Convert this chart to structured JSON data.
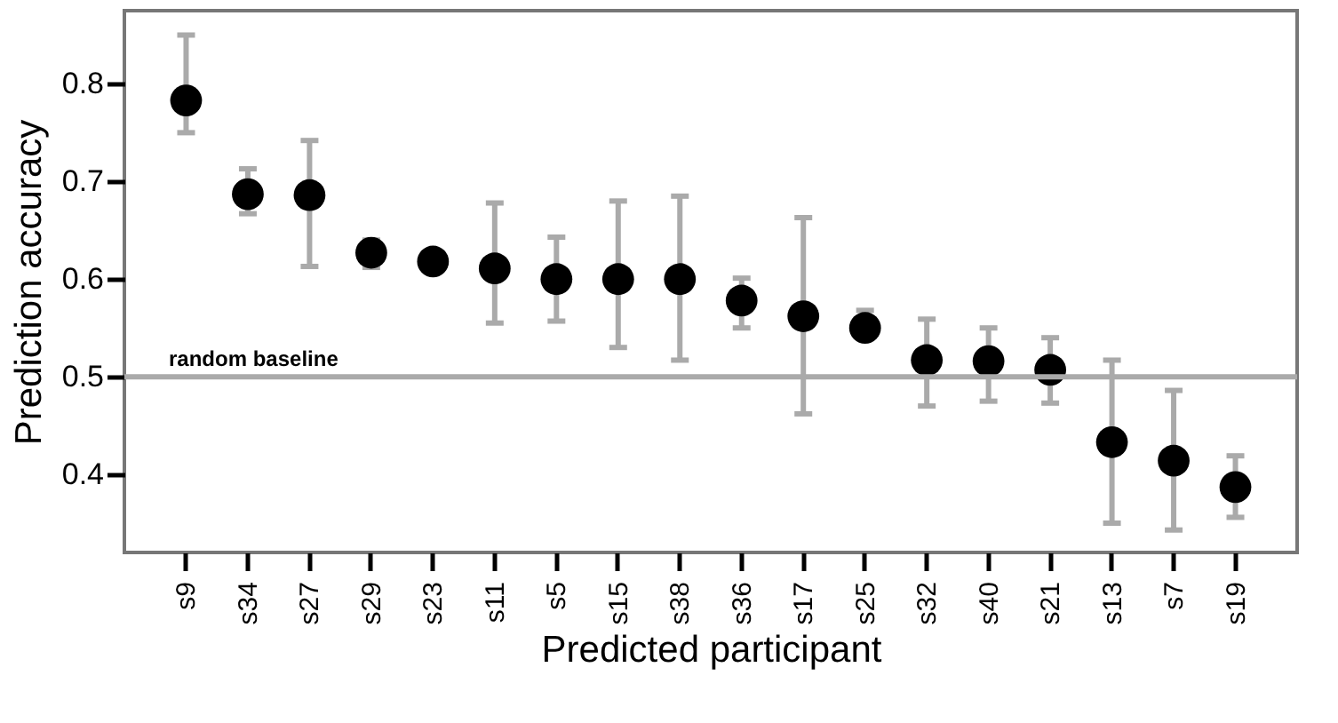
{
  "chart_data": {
    "type": "scatter",
    "xlabel": "Predicted participant",
    "ylabel": "Prediction accuracy",
    "categories": [
      "s9",
      "s34",
      "s27",
      "s29",
      "s23",
      "s11",
      "s5",
      "s15",
      "s38",
      "s36",
      "s17",
      "s25",
      "s32",
      "s40",
      "s21",
      "s13",
      "s7",
      "s19"
    ],
    "series": [
      {
        "color": "#000000",
        "values": [
          0.783,
          0.687,
          0.686,
          0.627,
          0.618,
          0.611,
          0.6,
          0.6,
          0.6,
          0.578,
          0.562,
          0.55,
          0.517,
          0.516,
          0.507,
          0.433,
          0.414,
          0.387
        ],
        "errors": [
          [
            0.75,
            0.85
          ],
          [
            0.667,
            0.713
          ],
          [
            0.613,
            0.742
          ],
          [
            0.612,
            0.64
          ],
          null,
          [
            0.555,
            0.678
          ],
          [
            0.557,
            0.643
          ],
          [
            0.53,
            0.68
          ],
          [
            0.517,
            0.685
          ],
          [
            0.55,
            0.601
          ],
          [
            0.462,
            0.663
          ],
          [
            0.55,
            0.568
          ],
          [
            0.47,
            0.559
          ],
          [
            0.475,
            0.55
          ],
          [
            0.473,
            0.54
          ],
          [
            0.35,
            0.517
          ],
          [
            0.343,
            0.486
          ],
          [
            0.356,
            0.419
          ]
        ]
      }
    ],
    "ylim": [
      0.32,
      0.875
    ],
    "yticks": [
      0.4,
      0.5,
      0.6,
      0.7,
      0.8
    ],
    "ref_lines": [
      {
        "axis": "y",
        "value": 0.5,
        "label": "random baseline",
        "color": "#aaaaaa"
      }
    ],
    "grid": false,
    "marker": "circle"
  }
}
